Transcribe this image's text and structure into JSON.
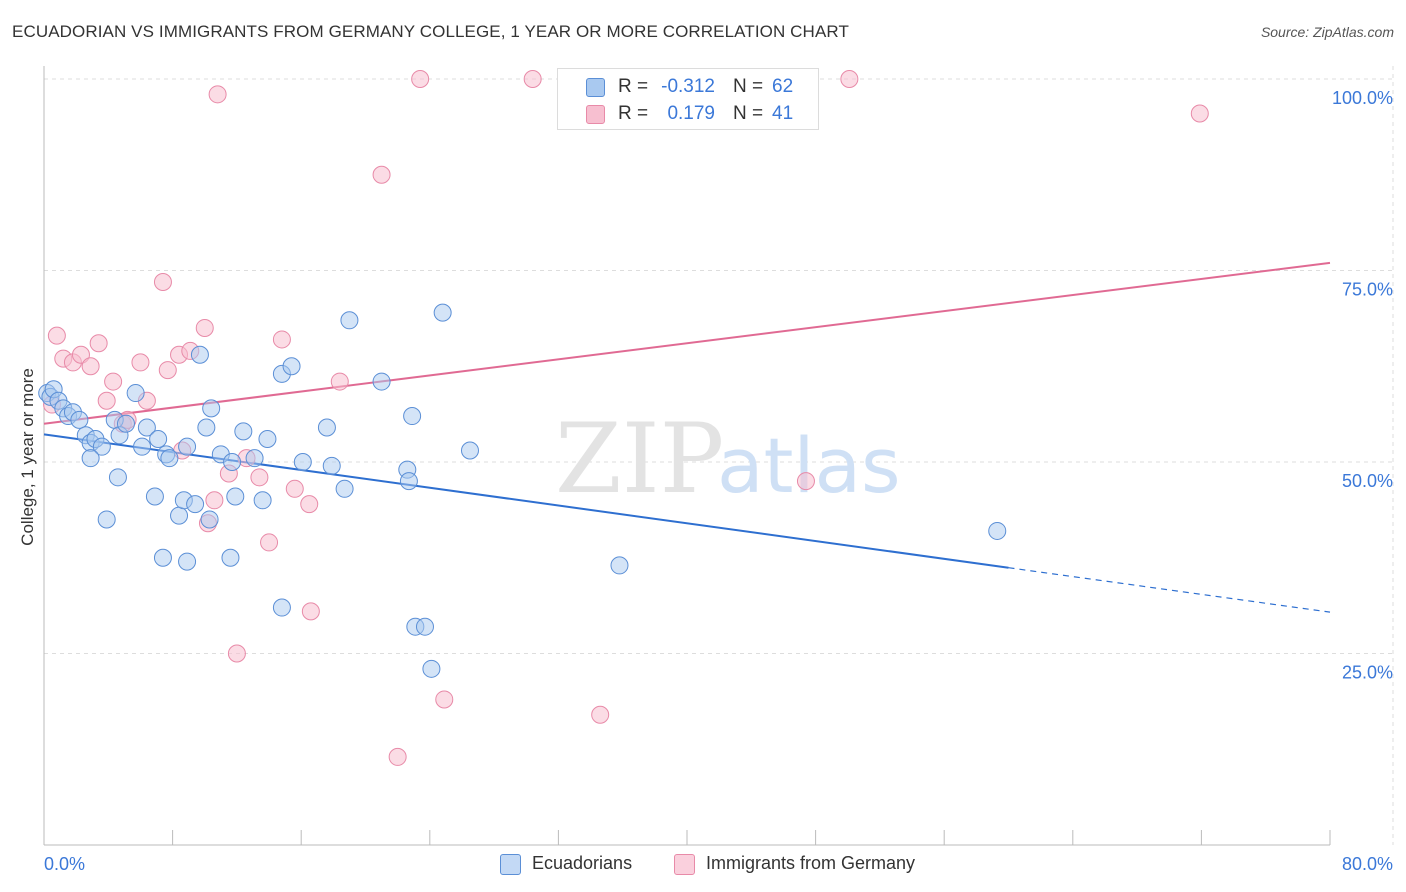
{
  "title": "ECUADORIAN VS IMMIGRANTS FROM GERMANY COLLEGE, 1 YEAR OR MORE CORRELATION CHART",
  "source": "Source: ZipAtlas.com",
  "watermark": {
    "zip": "ZIP",
    "atlas": "atlas"
  },
  "legend": {
    "rows": [
      {
        "r_label": "R =",
        "r_value": "-0.312",
        "n_label": "N =",
        "n_value": "62"
      },
      {
        "r_label": "R =",
        "r_value": "0.179",
        "n_label": "N =",
        "n_value": "41"
      }
    ]
  },
  "bottom_legend": [
    "Ecuadorians",
    "Immigrants from Germany"
  ],
  "colors": {
    "blue_fill": "#a9c9f0",
    "blue_stroke": "#5b8fd6",
    "blue_line": "#2e6fd0",
    "pink_fill": "#f7bfd0",
    "pink_stroke": "#e88aa8",
    "pink_line": "#e06a93",
    "tick_label": "#3b78d8",
    "grid": "#dddddd"
  },
  "chart_data": {
    "type": "scatter",
    "title": "ECUADORIAN VS IMMIGRANTS FROM GERMANY COLLEGE, 1 YEAR OR MORE CORRELATION CHART",
    "xlabel": "",
    "ylabel": "College, 1 year or more",
    "xlim": [
      0,
      80
    ],
    "ylim": [
      0,
      100
    ],
    "x_tick_labels": [
      "0.0%",
      "80.0%"
    ],
    "y_ticks": [
      25,
      50,
      75,
      100
    ],
    "y_tick_labels": [
      "25.0%",
      "50.0%",
      "75.0%",
      "100.0%"
    ],
    "grid": true,
    "series": [
      {
        "name": "Ecuadorians",
        "color": "#a9c9f0",
        "points": [
          [
            0.2,
            59
          ],
          [
            0.4,
            58.5
          ],
          [
            0.6,
            59.5
          ],
          [
            0.9,
            58
          ],
          [
            1.2,
            57
          ],
          [
            1.5,
            56
          ],
          [
            1.8,
            56.5
          ],
          [
            2.2,
            55.5
          ],
          [
            2.6,
            53.5
          ],
          [
            2.9,
            52.5
          ],
          [
            3.2,
            53
          ],
          [
            3.6,
            52
          ],
          [
            2.9,
            50.5
          ],
          [
            4.4,
            55.5
          ],
          [
            4.7,
            53.5
          ],
          [
            5.1,
            55
          ],
          [
            5.7,
            59
          ],
          [
            6.4,
            54.5
          ],
          [
            7.1,
            53
          ],
          [
            6.1,
            52
          ],
          [
            7.6,
            51
          ],
          [
            7.8,
            50.5
          ],
          [
            8.9,
            52
          ],
          [
            9.7,
            64
          ],
          [
            10.1,
            54.5
          ],
          [
            10.4,
            57
          ],
          [
            11.0,
            51
          ],
          [
            11.7,
            50
          ],
          [
            12.4,
            54
          ],
          [
            13.1,
            50.5
          ],
          [
            13.9,
            53
          ],
          [
            14.8,
            61.5
          ],
          [
            15.4,
            62.5
          ],
          [
            16.1,
            50
          ],
          [
            17.6,
            54.5
          ],
          [
            17.9,
            49.5
          ],
          [
            18.7,
            46.5
          ],
          [
            19.0,
            68.5
          ],
          [
            21.0,
            60.5
          ],
          [
            22.6,
            49
          ],
          [
            22.7,
            47.5
          ],
          [
            22.9,
            56
          ],
          [
            24.8,
            69.5
          ],
          [
            26.5,
            51.5
          ],
          [
            4.6,
            48
          ],
          [
            3.9,
            42.5
          ],
          [
            6.9,
            45.5
          ],
          [
            8.4,
            43
          ],
          [
            8.7,
            45
          ],
          [
            9.4,
            44.5
          ],
          [
            10.3,
            42.5
          ],
          [
            11.9,
            45.5
          ],
          [
            13.6,
            45
          ],
          [
            7.4,
            37.5
          ],
          [
            8.9,
            37
          ],
          [
            11.6,
            37.5
          ],
          [
            14.8,
            31
          ],
          [
            23.1,
            28.5
          ],
          [
            23.7,
            28.5
          ],
          [
            24.1,
            23
          ],
          [
            35.8,
            36.5
          ],
          [
            59.3,
            41
          ]
        ]
      },
      {
        "name": "Immigrants from Germany",
        "color": "#f7bfd0",
        "points": [
          [
            0.5,
            57.5
          ],
          [
            0.8,
            66.5
          ],
          [
            1.2,
            63.5
          ],
          [
            1.8,
            63
          ],
          [
            2.3,
            64
          ],
          [
            2.9,
            62.5
          ],
          [
            3.4,
            65.5
          ],
          [
            3.9,
            58
          ],
          [
            4.3,
            60.5
          ],
          [
            4.9,
            55
          ],
          [
            6.0,
            63
          ],
          [
            6.4,
            58
          ],
          [
            7.4,
            73.5
          ],
          [
            7.7,
            62
          ],
          [
            8.4,
            64
          ],
          [
            8.6,
            51.5
          ],
          [
            9.1,
            64.5
          ],
          [
            10.0,
            67.5
          ],
          [
            10.6,
            45
          ],
          [
            10.2,
            42
          ],
          [
            10.8,
            98
          ],
          [
            11.5,
            48.5
          ],
          [
            12.0,
            25
          ],
          [
            12.6,
            50.5
          ],
          [
            13.4,
            48
          ],
          [
            14.0,
            39.5
          ],
          [
            14.8,
            66
          ],
          [
            15.6,
            46.5
          ],
          [
            16.5,
            44.5
          ],
          [
            16.6,
            30.5
          ],
          [
            18.4,
            60.5
          ],
          [
            21.0,
            87.5
          ],
          [
            22.0,
            11.5
          ],
          [
            23.4,
            100
          ],
          [
            24.9,
            19
          ],
          [
            30.4,
            100
          ],
          [
            34.6,
            17
          ],
          [
            47.4,
            47.5
          ],
          [
            50.1,
            100
          ],
          [
            71.9,
            95.5
          ],
          [
            5.2,
            55.5
          ]
        ]
      }
    ],
    "trend_lines": [
      {
        "series": "Ecuadorians",
        "x_start": 0,
        "y_start": 53.6,
        "x_end": 60,
        "y_end": 36.2,
        "dashed_to_x": 80,
        "dashed_to_y": 30.4
      },
      {
        "series": "Immigrants from Germany",
        "x_start": 0,
        "y_start": 55,
        "x_end": 80,
        "y_end": 76
      }
    ]
  }
}
